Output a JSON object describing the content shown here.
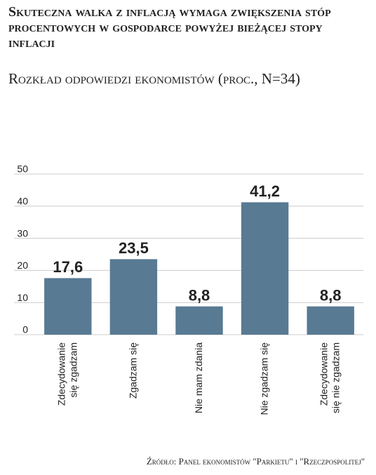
{
  "chart_data": {
    "type": "bar",
    "title": "Skuteczna walka z inflacją wymaga zwiększenia stóp procentowych w gospodarce powyżej bieżącej stopy inflacji",
    "subtitle": "Rozkład odpowiedzi ekonomistów (proc., N=34)",
    "categories": [
      "Zdecydowanie\nsię zgadzam",
      "Zgadzam się",
      "Nie mam zdania",
      "Nie zgadzam się",
      "Zdecydowanie\nsię nie zgadzam"
    ],
    "values": [
      17.6,
      23.5,
      8.8,
      41.2,
      8.8
    ],
    "value_labels": [
      "17,6",
      "23,5",
      "8,8",
      "41,2",
      "8,8"
    ],
    "color": "#587a93",
    "ylim": [
      0,
      50
    ],
    "yticks": [
      0,
      10,
      20,
      30,
      40,
      50
    ],
    "grid": true,
    "source": "Źródło: Panel ekonomistów \"Parkietu\" i \"Rzeczpospolitej\""
  }
}
